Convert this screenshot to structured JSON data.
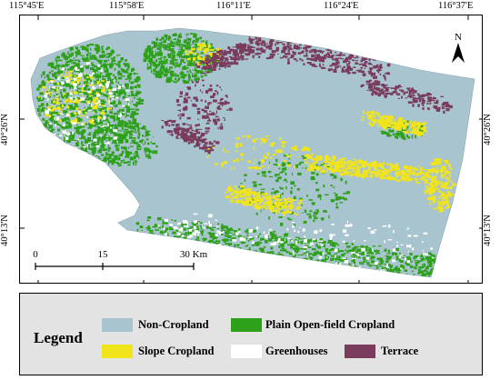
{
  "map": {
    "longitude_labels": [
      "115°45'E",
      "115°58'E",
      "116°11'E",
      "116°24'E",
      "116°37'E"
    ],
    "latitude_labels": [
      "40°26'N",
      "40°13'N"
    ],
    "north_arrow": {
      "letter": "N"
    },
    "scale_bar": {
      "labels": [
        "0",
        "15",
        "30 Km"
      ]
    },
    "colors": {
      "non_cropland": "#a8c4cf",
      "plain_cropland": "#2ea11a",
      "slope_cropland": "#f2e41a",
      "greenhouses": "#ffffff",
      "terrace": "#7a3b5c"
    }
  },
  "legend": {
    "title": "Legend",
    "items": [
      {
        "label": "Non-Cropland",
        "color": "#a8c4cf"
      },
      {
        "label": "Plain Open-field Cropland",
        "color": "#2ea11a"
      },
      {
        "label": "Slope Cropland",
        "color": "#f2e41a"
      },
      {
        "label": "Greenhouses",
        "color": "#ffffff"
      },
      {
        "label": "Terrace",
        "color": "#7a3b5c"
      }
    ]
  }
}
